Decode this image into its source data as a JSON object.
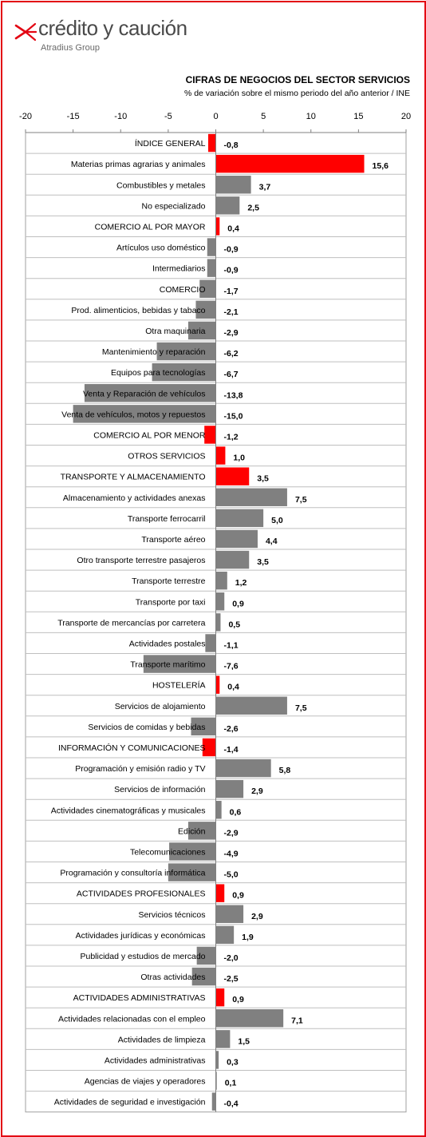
{
  "brand": {
    "name": "crédito y caución",
    "subtitle": "Atradius Group",
    "color": "#e30613"
  },
  "chart_data": {
    "type": "bar",
    "orientation": "horizontal",
    "title": "CIFRAS DE NEGOCIOS DEL SECTOR SERVICIOS",
    "subtitle": "% de variación sobre el mismo periodo del año anterior / INE",
    "xlim": [
      -20,
      20
    ],
    "xticks": [
      -20,
      -15,
      -10,
      -5,
      0,
      5,
      10,
      15,
      20
    ],
    "tick_labels": [
      "-20",
      "-15",
      "-10",
      "-5",
      "0",
      "5",
      "10",
      "15",
      "20"
    ],
    "colors": {
      "highlight": "#ff0000",
      "normal": "#808080"
    },
    "rows": [
      {
        "label": "ÍNDICE GENERAL",
        "value": -0.8,
        "value_label": "-0,8",
        "highlight": true
      },
      {
        "label": "Materias primas agrarias  y animales",
        "value": 15.6,
        "value_label": "15,6",
        "highlight": true
      },
      {
        "label": "Combustibles y metales",
        "value": 3.7,
        "value_label": "3,7",
        "highlight": false
      },
      {
        "label": "No especializado",
        "value": 2.5,
        "value_label": "2,5",
        "highlight": false
      },
      {
        "label": "COMERCIO AL POR MAYOR",
        "value": 0.4,
        "value_label": "0,4",
        "highlight": true
      },
      {
        "label": "Artículos uso doméstico",
        "value": -0.9,
        "value_label": "-0,9",
        "highlight": false
      },
      {
        "label": "Intermediarios",
        "value": -0.9,
        "value_label": "-0,9",
        "highlight": false
      },
      {
        "label": "COMERCIO",
        "value": -1.7,
        "value_label": "-1,7",
        "highlight": false
      },
      {
        "label": "Prod. alimenticios, bebidas y tabaco",
        "value": -2.1,
        "value_label": "-2,1",
        "highlight": false
      },
      {
        "label": "Otra maquinaria",
        "value": -2.9,
        "value_label": "-2,9",
        "highlight": false
      },
      {
        "label": "Mantenimiento y reparación",
        "value": -6.2,
        "value_label": "-6,2",
        "highlight": false
      },
      {
        "label": "Equipos para tecnologías",
        "value": -6.7,
        "value_label": "-6,7",
        "highlight": false
      },
      {
        "label": "Venta y Reparación  de vehículos",
        "value": -13.8,
        "value_label": "-13,8",
        "highlight": false
      },
      {
        "label": "Venta de vehículos, motos y repuestos",
        "value": -15.0,
        "value_label": "-15,0",
        "highlight": false
      },
      {
        "label": "COMERCIO AL POR MENOR",
        "value": -1.2,
        "value_label": "-1,2",
        "highlight": true
      },
      {
        "label": "OTROS SERVICIOS",
        "value": 1.0,
        "value_label": "1,0",
        "highlight": true
      },
      {
        "label": "TRANSPORTE  Y ALMACENAMIENTO",
        "value": 3.5,
        "value_label": "3,5",
        "highlight": true
      },
      {
        "label": "Almacenamiento y actividades anexas",
        "value": 7.5,
        "value_label": "7,5",
        "highlight": false
      },
      {
        "label": "Transporte ferrocarril",
        "value": 5.0,
        "value_label": "5,0",
        "highlight": false
      },
      {
        "label": "Transporte aéreo",
        "value": 4.4,
        "value_label": "4,4",
        "highlight": false
      },
      {
        "label": "Otro transporte terrestre pasajeros",
        "value": 3.5,
        "value_label": "3,5",
        "highlight": false
      },
      {
        "label": "Transporte terrestre",
        "value": 1.2,
        "value_label": "1,2",
        "highlight": false
      },
      {
        "label": "Transporte por taxi",
        "value": 0.9,
        "value_label": "0,9",
        "highlight": false
      },
      {
        "label": "Transporte de mercancías por carretera",
        "value": 0.5,
        "value_label": "0,5",
        "highlight": false
      },
      {
        "label": "Actividades postales",
        "value": -1.1,
        "value_label": "-1,1",
        "highlight": false
      },
      {
        "label": "Transporte marítimo",
        "value": -7.6,
        "value_label": "-7,6",
        "highlight": false
      },
      {
        "label": "HOSTELERÍA",
        "value": 0.4,
        "value_label": "0,4",
        "highlight": true
      },
      {
        "label": "Servicios de alojamiento",
        "value": 7.5,
        "value_label": "7,5",
        "highlight": false
      },
      {
        "label": "Servicios de comidas y bebidas",
        "value": -2.6,
        "value_label": "-2,6",
        "highlight": false
      },
      {
        "label": "INFORMACIÓN Y COMUNICACIONES",
        "value": -1.4,
        "value_label": "-1,4",
        "highlight": true
      },
      {
        "label": "Programación y emisión radio y TV",
        "value": 5.8,
        "value_label": "5,8",
        "highlight": false
      },
      {
        "label": "Servicios de información",
        "value": 2.9,
        "value_label": "2,9",
        "highlight": false
      },
      {
        "label": "Actividades cinematográficas  y musicales",
        "value": 0.6,
        "value_label": "0,6",
        "highlight": false
      },
      {
        "label": "Edición",
        "value": -2.9,
        "value_label": "-2,9",
        "highlight": false
      },
      {
        "label": "Telecomunicaciones",
        "value": -4.9,
        "value_label": "-4,9",
        "highlight": false
      },
      {
        "label": "Programación y consultoría informática",
        "value": -5.0,
        "value_label": "-5,0",
        "highlight": false
      },
      {
        "label": "ACTIVIDADES PROFESIONALES",
        "value": 0.9,
        "value_label": "0,9",
        "highlight": true
      },
      {
        "label": "Servicios técnicos",
        "value": 2.9,
        "value_label": "2,9",
        "highlight": false
      },
      {
        "label": "Actividades jurídicas y económicas",
        "value": 1.9,
        "value_label": "1,9",
        "highlight": false
      },
      {
        "label": "Publicidad y estudios de mercado",
        "value": -2.0,
        "value_label": "-2,0",
        "highlight": false
      },
      {
        "label": "Otras actividades",
        "value": -2.5,
        "value_label": "-2,5",
        "highlight": false
      },
      {
        "label": "ACTIVIDADES ADMINISTRATIVAS",
        "value": 0.9,
        "value_label": "0,9",
        "highlight": true
      },
      {
        "label": "Actividades relacionadas  con el empleo",
        "value": 7.1,
        "value_label": "7,1",
        "highlight": false
      },
      {
        "label": "Actividades de limpieza",
        "value": 1.5,
        "value_label": "1,5",
        "highlight": false
      },
      {
        "label": "Actividades administrativas",
        "value": 0.3,
        "value_label": "0,3",
        "highlight": false
      },
      {
        "label": "Agencias de viajes y operadores",
        "value": 0.1,
        "value_label": "0,1",
        "highlight": false
      },
      {
        "label": "Actividades de seguridad e investigación",
        "value": -0.4,
        "value_label": "-0,4",
        "highlight": false
      }
    ]
  }
}
